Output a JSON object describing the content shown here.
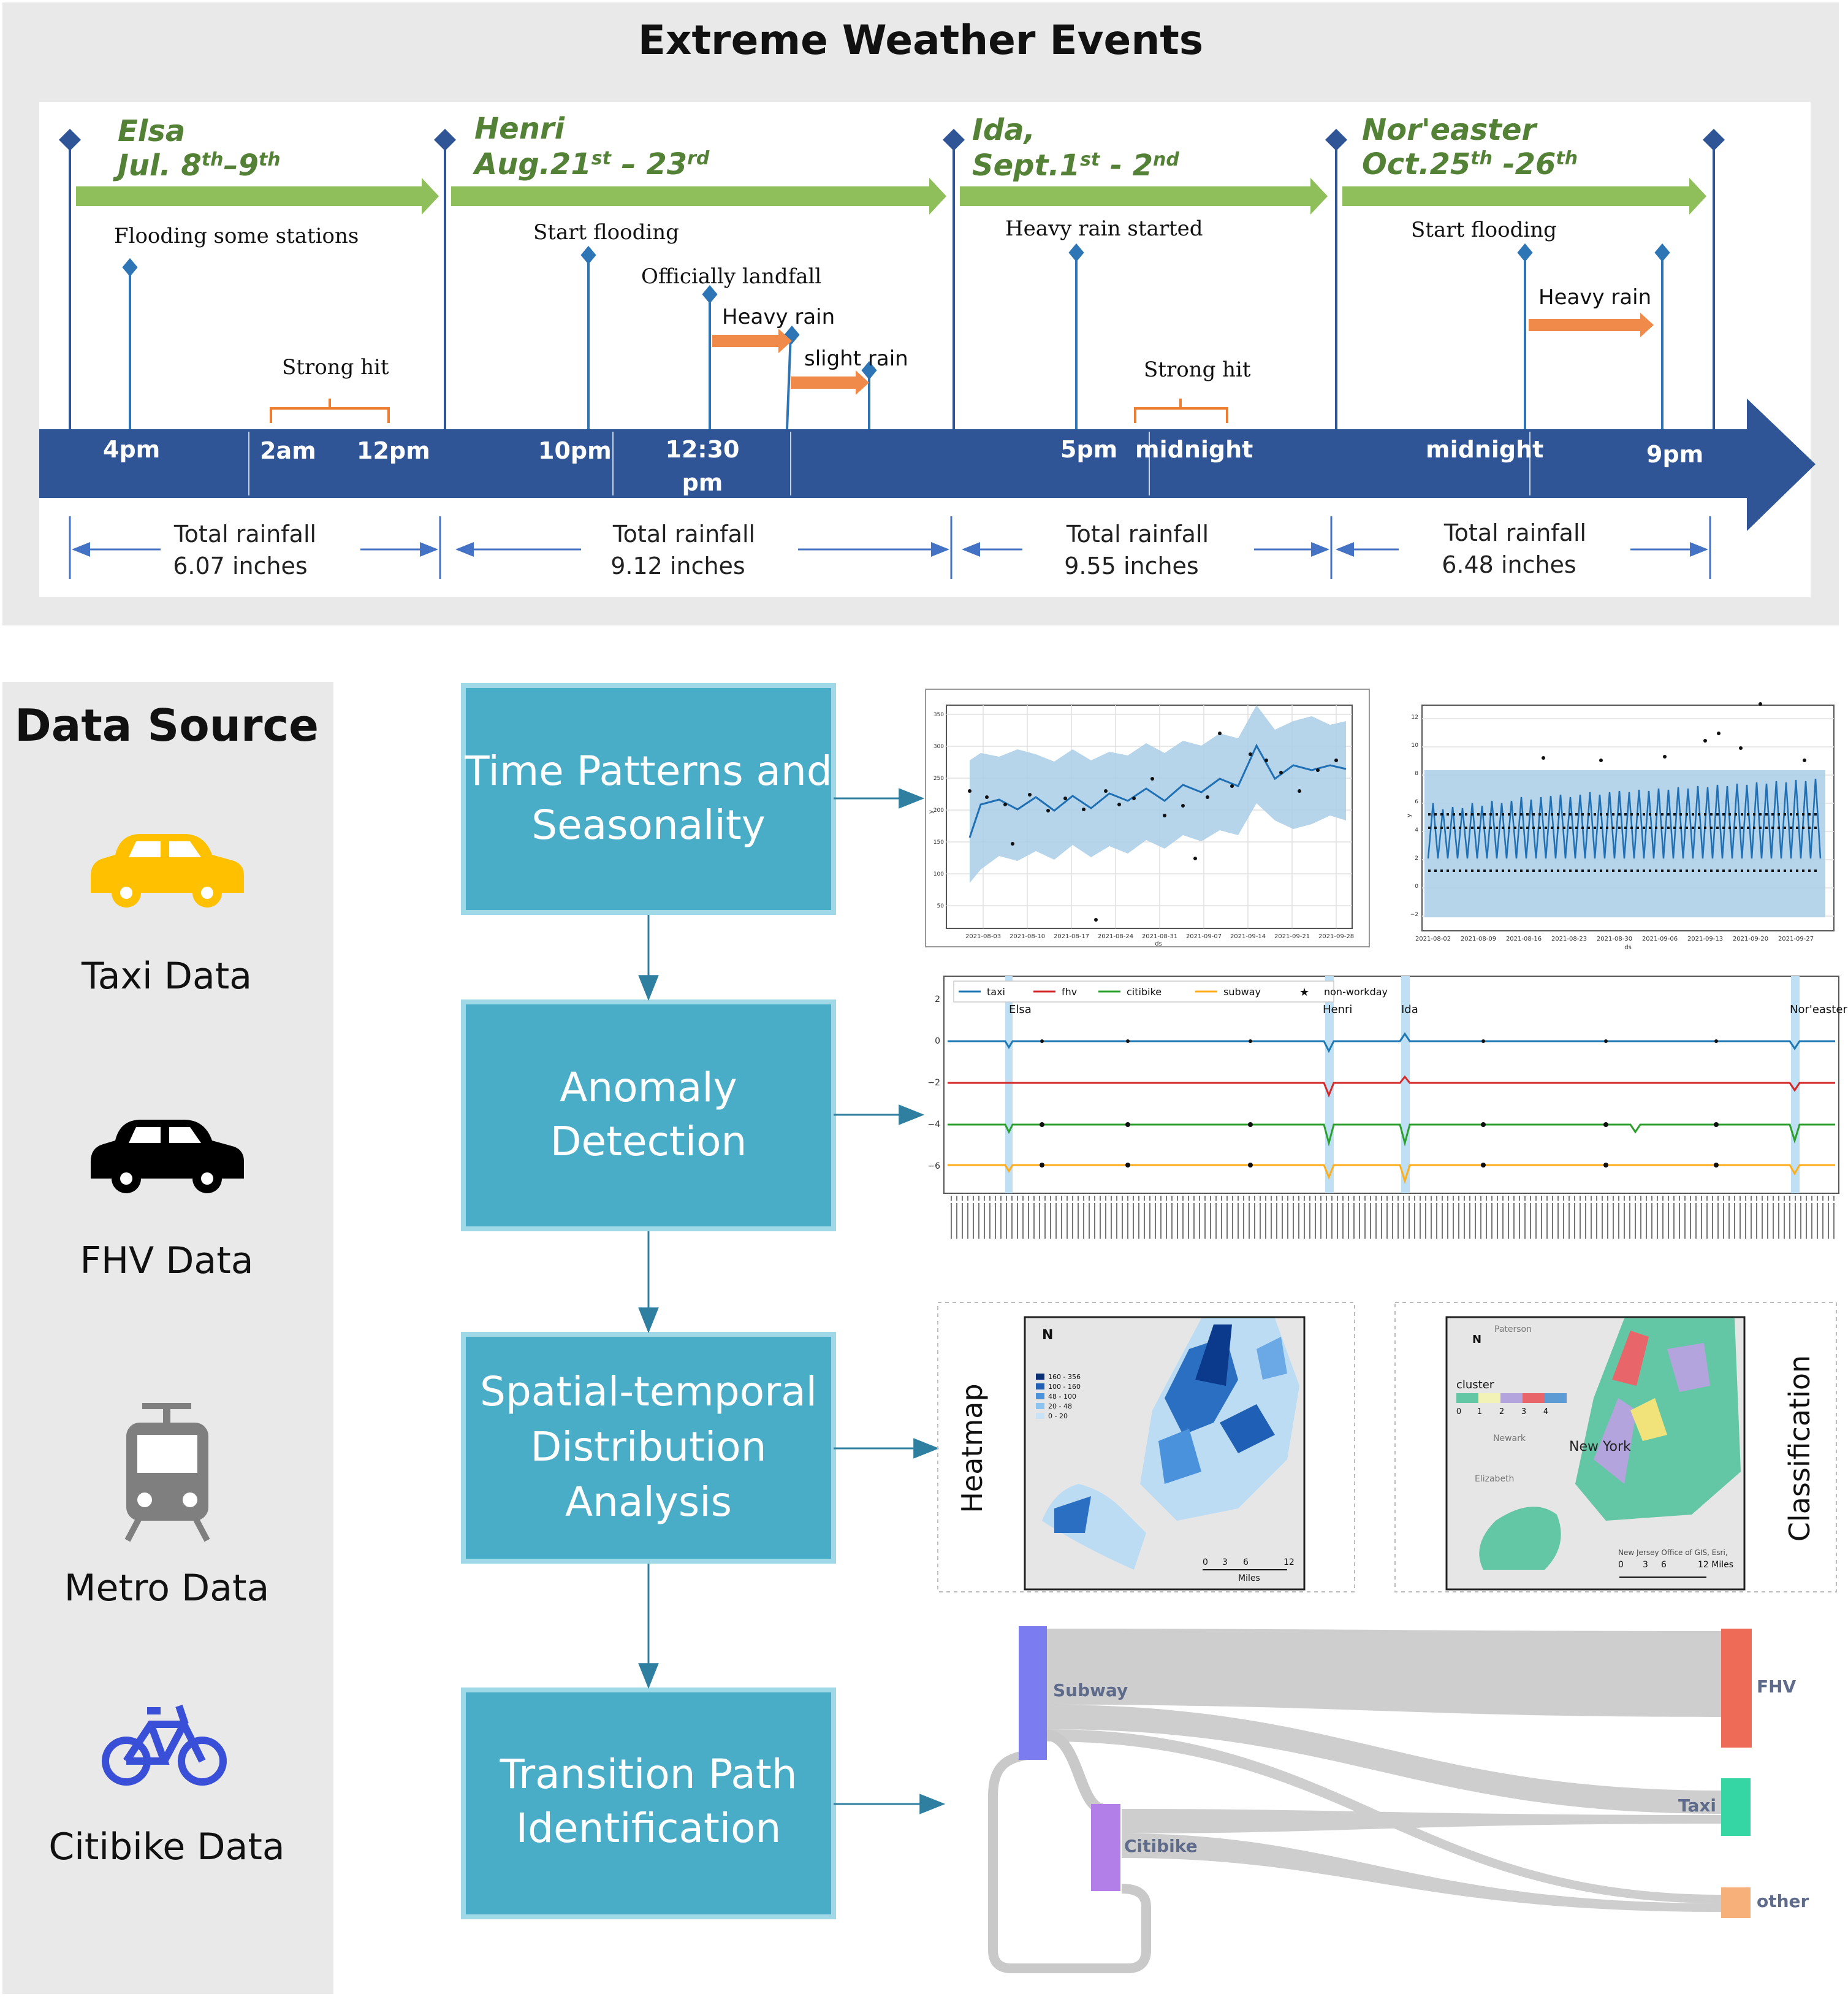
{
  "title": "Extreme Weather Events",
  "colors": {
    "timeline": "#2f5597",
    "green_arrow": "#8fbf5a",
    "event_name": "#538135",
    "orange": "#f08a4b",
    "stem": "#2e75b6",
    "box": "#4aadc8",
    "box_border": "#9fd8e6",
    "taxi": "#ffc000",
    "citibike": "#3a4fd8",
    "metro": "#7f7f7f"
  },
  "events": [
    {
      "name": "Elsa",
      "date_pre": "Jul. 8",
      "sup1": "th",
      "mid": "–9",
      "sup2": "th"
    },
    {
      "name": "Henri",
      "date_pre": "Aug.21",
      "sup1": "st",
      "mid": " – 23",
      "sup2": "rd"
    },
    {
      "name": "Ida,",
      "date_pre": "Sept.1",
      "sup1": "st",
      "mid": " - 2",
      "sup2": "nd"
    },
    {
      "name": "Nor'easter",
      "date_pre": "Oct.25",
      "sup1": "th",
      "mid": " -26",
      "sup2": "th"
    }
  ],
  "annotations": {
    "elsa_flooding": "Flooding some stations",
    "elsa_strong_hit": "Strong hit",
    "henri_start_flooding": "Start flooding",
    "henri_landfall": "Officially landfall",
    "henri_heavy_rain": "Heavy rain",
    "henri_slight_rain": "slight rain",
    "ida_heavy_rain": "Heavy rain started",
    "ida_strong_hit": "Strong hit",
    "nor_start_flooding": "Start flooding",
    "nor_heavy_rain": "Heavy rain"
  },
  "times": {
    "t1": "4pm",
    "t2": "2am",
    "t3": "12pm",
    "t4": "10pm",
    "t5a": "12:30",
    "t5b": "pm",
    "t6": "5pm",
    "t7": "midnight",
    "t8": "midnight",
    "t9": "9pm"
  },
  "rainfall": [
    {
      "label": "Total rainfall",
      "value": "6.07 inches"
    },
    {
      "label": "Total rainfall",
      "value": "9.12 inches"
    },
    {
      "label": "Total rainfall",
      "value": "9.55 inches"
    },
    {
      "label": "Total rainfall",
      "value": "6.48 inches"
    }
  ],
  "data_source": {
    "title": "Data Source",
    "items": [
      {
        "label": "Taxi Data",
        "icon": "taxi-car-icon"
      },
      {
        "label": "FHV Data",
        "icon": "fhv-car-icon"
      },
      {
        "label": "Metro Data",
        "icon": "metro-train-icon"
      },
      {
        "label": "Citibike Data",
        "icon": "bicycle-icon"
      }
    ]
  },
  "steps": [
    {
      "l1": "Time Patterns and",
      "l2": "Seasonality",
      "l3": ""
    },
    {
      "l1": "Anomaly",
      "l2": "Detection",
      "l3": ""
    },
    {
      "l1": "Spatial-temporal",
      "l2": "Distribution",
      "l3": "Analysis"
    },
    {
      "l1": "Transition Path",
      "l2": "Identification",
      "l3": ""
    }
  ],
  "forecast_charts": {
    "left": {
      "xticks": [
        "2021-08-03",
        "2021-08-10",
        "2021-08-17",
        "2021-08-24",
        "2021-08-31",
        "2021-09-07",
        "2021-09-14",
        "2021-09-21",
        "2021-09-28"
      ],
      "yticks": [
        "50",
        "100",
        "150",
        "200",
        "250",
        "300",
        "350"
      ],
      "xlabel": "ds",
      "ylabel": "y"
    },
    "right": {
      "xticks": [
        "2021-08-02",
        "2021-08-09",
        "2021-08-16",
        "2021-08-23",
        "2021-08-30",
        "2021-09-06",
        "2021-09-13",
        "2021-09-20",
        "2021-09-27"
      ],
      "yticks": [
        "−2",
        "0",
        "2",
        "4",
        "6",
        "8",
        "10",
        "12"
      ],
      "xlabel": "ds",
      "ylabel": "y"
    }
  },
  "anomaly_chart": {
    "legend": [
      "taxi",
      "fhv",
      "citibike",
      "subway",
      "non-workday"
    ],
    "events": [
      "Elsa",
      "Henri",
      "Ida",
      "Nor'easter"
    ],
    "yticks": [
      "2",
      "0",
      "−2",
      "−4",
      "−6"
    ]
  },
  "maps": {
    "heatmap_label": "Heatmap",
    "classification_label": "Classification",
    "north": "N",
    "heat_legend": [
      "160 - 356",
      "100 - 160",
      "48 - 100",
      "20 - 48",
      "0 - 20"
    ],
    "heat_scale": [
      "0",
      "3",
      "6",
      "12"
    ],
    "heat_scale_unit": "Miles",
    "cluster_title": "cluster",
    "cluster_ticks": [
      "0",
      "1",
      "2",
      "3",
      "4"
    ],
    "places": [
      "Paterson",
      "Newark",
      "New York",
      "Elizabeth"
    ],
    "credit": "New Jersey Office of GIS, Esri,",
    "class_scale": [
      "0",
      "3",
      "6",
      "12 Miles"
    ]
  },
  "sankey": {
    "sources": [
      "Subway",
      "Citibike"
    ],
    "targets": [
      "FHV",
      "Taxi",
      "other"
    ],
    "colors": {
      "Subway": "#7b7cf0",
      "Citibike": "#b27ee8",
      "FHV": "#ee6b58",
      "Taxi": "#35d6a4",
      "other": "#f7b07a"
    }
  }
}
